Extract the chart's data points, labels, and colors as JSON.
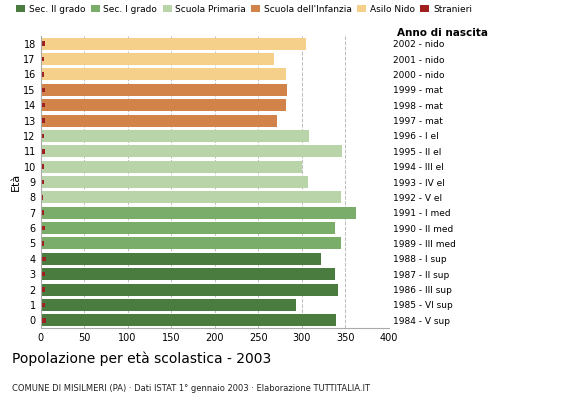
{
  "ages": [
    18,
    17,
    16,
    15,
    14,
    13,
    12,
    11,
    10,
    9,
    8,
    7,
    6,
    5,
    4,
    3,
    2,
    1,
    0
  ],
  "years": [
    "1984 - V sup",
    "1985 - VI sup",
    "1986 - III sup",
    "1987 - II sup",
    "1988 - I sup",
    "1989 - III med",
    "1990 - II med",
    "1991 - I med",
    "1992 - V el",
    "1993 - IV el",
    "1994 - III el",
    "1995 - II el",
    "1996 - I el",
    "1997 - mat",
    "1998 - mat",
    "1999 - mat",
    "2000 - nido",
    "2001 - nido",
    "2002 - nido"
  ],
  "values": [
    340,
    293,
    342,
    338,
    322,
    345,
    338,
    362,
    345,
    307,
    300,
    347,
    308,
    272,
    282,
    283,
    282,
    268,
    305
  ],
  "stranieri_vals": [
    6,
    5,
    5,
    5,
    6,
    4,
    5,
    4,
    3,
    4,
    4,
    5,
    4,
    5,
    5,
    5,
    4,
    4,
    5
  ],
  "bar_colors": [
    "#4a7c3f",
    "#4a7c3f",
    "#4a7c3f",
    "#4a7c3f",
    "#4a7c3f",
    "#7aad6a",
    "#7aad6a",
    "#7aad6a",
    "#b8d4a8",
    "#b8d4a8",
    "#b8d4a8",
    "#b8d4a8",
    "#b8d4a8",
    "#d2834a",
    "#d2834a",
    "#d2834a",
    "#f5d08a",
    "#f5d08a",
    "#f5d08a"
  ],
  "legend_labels": [
    "Sec. II grado",
    "Sec. I grado",
    "Scuola Primaria",
    "Scuola dell'Infanzia",
    "Asilo Nido",
    "Stranieri"
  ],
  "legend_colors": [
    "#4a7c3f",
    "#7aad6a",
    "#b8d4a8",
    "#d2834a",
    "#f5d08a",
    "#a02020"
  ],
  "stranieri_color": "#a02020",
  "ylabel": "Età",
  "right_label": "Anno di nascita",
  "xlim": [
    0,
    400
  ],
  "xticks": [
    0,
    50,
    100,
    150,
    200,
    250,
    300,
    350,
    400
  ],
  "title": "Popolazione per età scolastica - 2003",
  "subtitle": "COMUNE DI MISILMERI (PA) · Dati ISTAT 1° gennaio 2003 · Elaborazione TUTTITALIA.IT",
  "grid_color": "#bbbbbb",
  "bg_color": "#ffffff"
}
